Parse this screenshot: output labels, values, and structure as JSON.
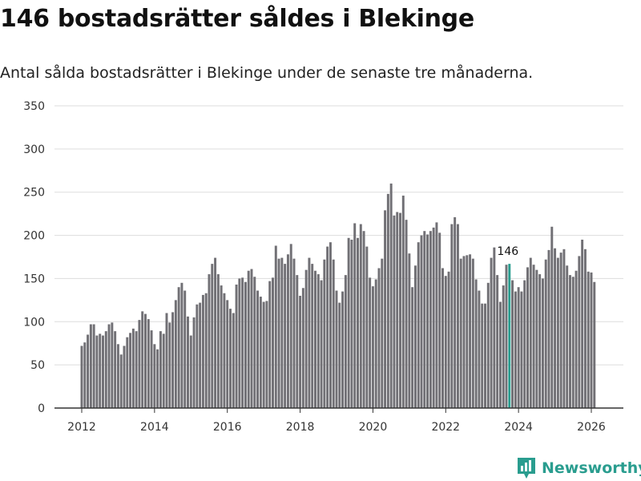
{
  "title": "146 bostadsrätter såldes i Blekinge",
  "subtitle": "Antal sålda bostadsrätter i Blekinge under de senaste tre månaderna.",
  "brand": "Newsworthy",
  "colors": {
    "bar": "#717075",
    "highlight": "#2a9d8f",
    "grid": "#dddddd",
    "axis": "#333333",
    "brand": "#2a9d8f"
  },
  "chart_data": {
    "type": "bar",
    "title": "146 bostadsrätter såldes i Blekinge",
    "xlabel": "",
    "ylabel": "",
    "ylim": [
      0,
      350
    ],
    "yticks": [
      0,
      50,
      100,
      150,
      200,
      250,
      300,
      350
    ],
    "ytick_labels": [
      "0",
      "50",
      "100",
      "150",
      "200",
      "250",
      "300",
      "350"
    ],
    "xticks": [
      2012,
      2014,
      2016,
      2018,
      2020,
      2022,
      2024,
      2026
    ],
    "xtick_labels": [
      "2012",
      "2014",
      "2016",
      "2018",
      "2020",
      "2022",
      "2024",
      "2026"
    ],
    "x_start": 2012.0,
    "x_step": 0.0833,
    "highlight_index": 141,
    "highlight_label": "146",
    "values": [
      72,
      76,
      85,
      97,
      97,
      84,
      86,
      84,
      89,
      97,
      99,
      89,
      74,
      62,
      72,
      82,
      87,
      92,
      89,
      102,
      112,
      109,
      103,
      90,
      74,
      68,
      89,
      86,
      110,
      99,
      111,
      125,
      140,
      145,
      136,
      106,
      84,
      105,
      120,
      122,
      131,
      133,
      155,
      167,
      174,
      155,
      142,
      133,
      125,
      115,
      110,
      143,
      150,
      151,
      146,
      159,
      161,
      152,
      136,
      129,
      123,
      124,
      147,
      151,
      188,
      173,
      174,
      167,
      178,
      190,
      173,
      154,
      130,
      139,
      160,
      174,
      167,
      159,
      155,
      148,
      172,
      187,
      192,
      172,
      136,
      122,
      135,
      154,
      197,
      195,
      214,
      197,
      213,
      205,
      187,
      151,
      141,
      149,
      162,
      173,
      229,
      248,
      260,
      223,
      227,
      226,
      246,
      218,
      179,
      140,
      165,
      192,
      200,
      205,
      201,
      205,
      209,
      215,
      203,
      162,
      153,
      158,
      213,
      221,
      213,
      173,
      176,
      177,
      178,
      173,
      149,
      136,
      121,
      121,
      145,
      174,
      186,
      154,
      123,
      142,
      166,
      167,
      148,
      135,
      140,
      135,
      148,
      163,
      174,
      166,
      160,
      155,
      150,
      172,
      183,
      210,
      185,
      174,
      180,
      184,
      165,
      154,
      152,
      159,
      176,
      195,
      184,
      158,
      157,
      146
    ]
  }
}
